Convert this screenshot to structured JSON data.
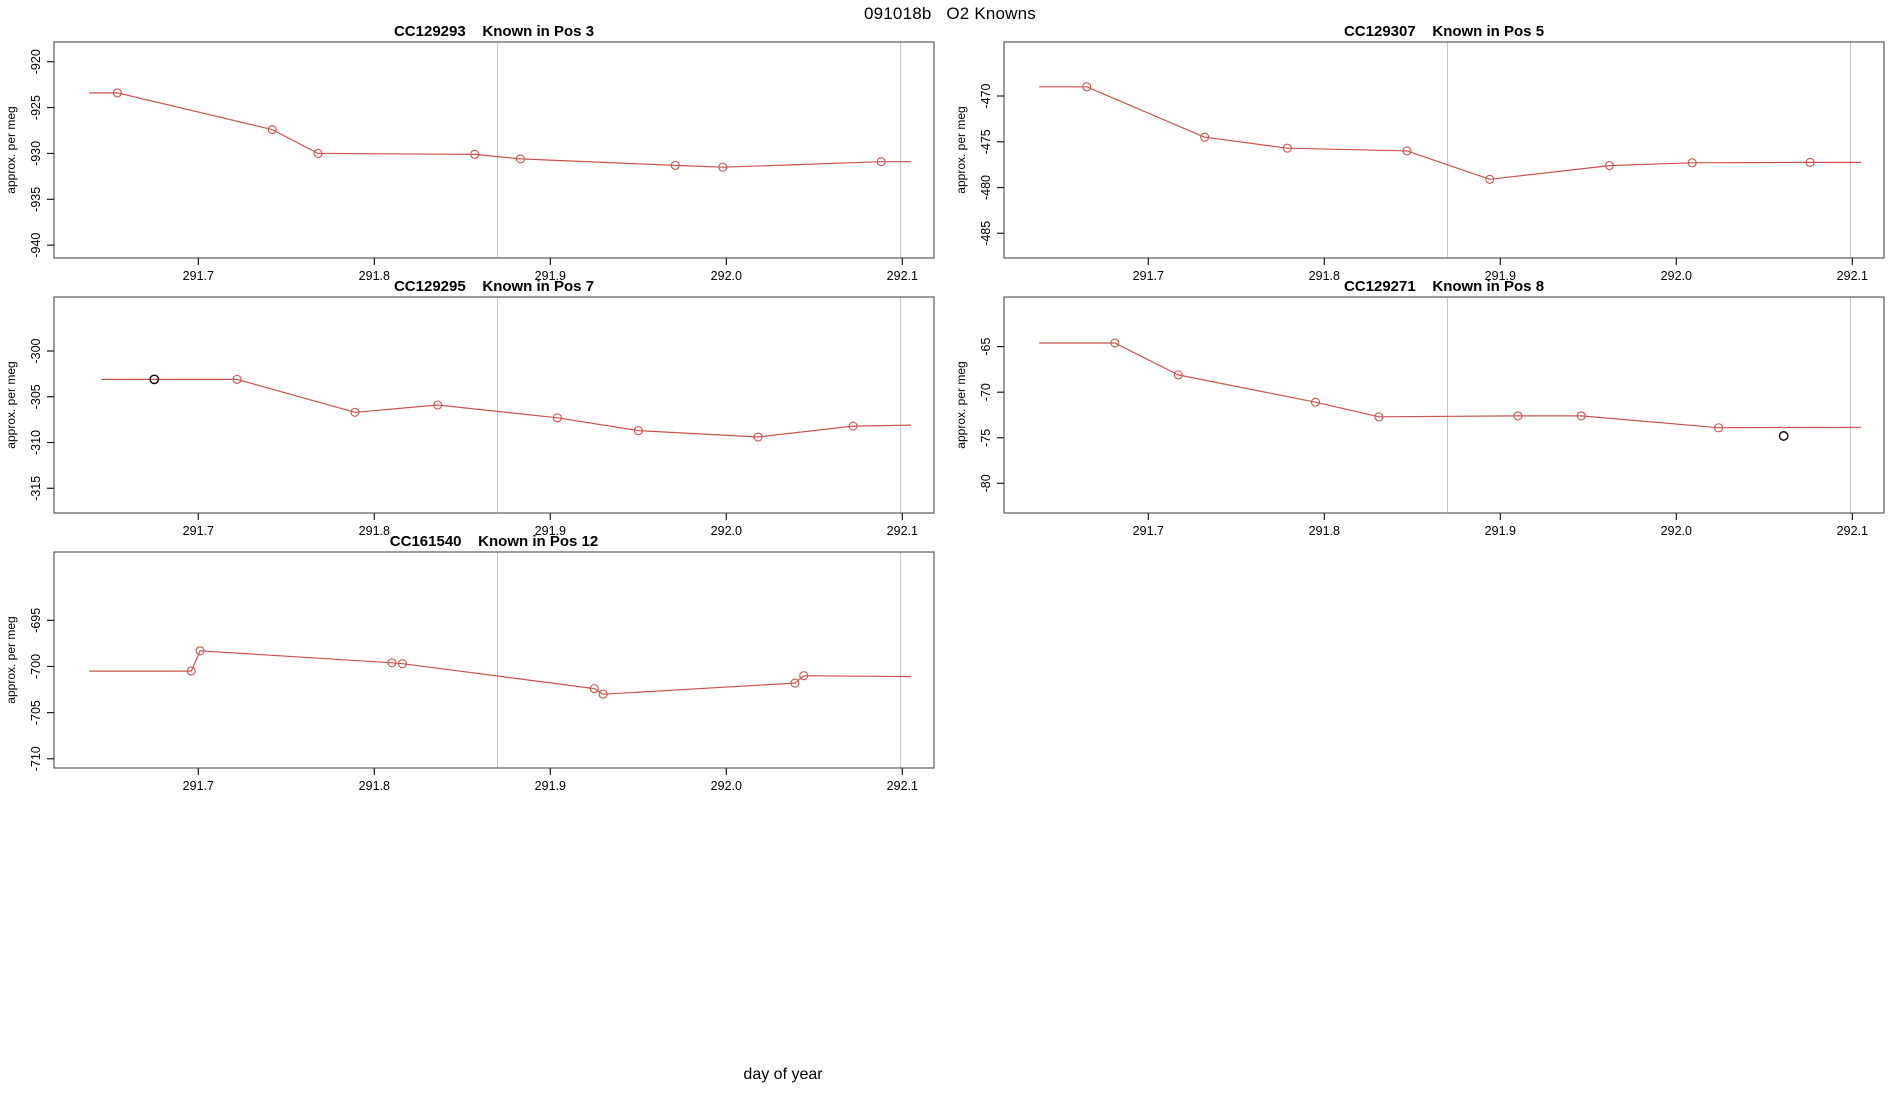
{
  "page": {
    "main_title": "091018b   O2 Knowns",
    "x_axis_label": "day of year"
  },
  "style": {
    "line_color": "#c9544f",
    "marker_color": "#c9544f",
    "outlier_color": "#140808",
    "vline_color": "#c6c6c6",
    "box_color": "#5a5a5a",
    "tick_color": "#1a1a1a",
    "text_color": "#000000"
  },
  "chart_data": [
    {
      "type": "line",
      "title": "CC129293    Known in Pos 3",
      "sample_id": "CC129293",
      "position_label": "Known in Pos 3",
      "ylabel": "approx. per meg",
      "col": 0,
      "row": 0,
      "xlim": [
        291.618,
        292.118
      ],
      "ylim": [
        -941.4,
        -917.85
      ],
      "xticks": [
        291.7,
        291.8,
        291.9,
        292.0,
        292.1
      ],
      "xtick_labels": [
        "291.7",
        "291.8",
        "291.9",
        "292.0",
        "292.1"
      ],
      "yticks": [
        -920,
        -925,
        -930,
        -935,
        -940
      ],
      "vlines": [
        291.87,
        292.099
      ],
      "x": [
        291.638,
        291.654,
        291.742,
        291.768,
        291.857,
        291.883,
        291.971,
        291.998,
        292.088,
        292.105
      ],
      "y": [
        -923.4,
        -923.4,
        -927.4,
        -930.0,
        -930.1,
        -930.6,
        -931.3,
        -931.5,
        -930.9,
        -930.9
      ],
      "m": [
        0,
        1,
        1,
        1,
        1,
        1,
        1,
        1,
        1,
        0
      ],
      "outliers": []
    },
    {
      "type": "line",
      "title": "CC129307    Known in Pos 5",
      "sample_id": "CC129307",
      "position_label": "Known in Pos 5",
      "ylabel": "approx. per meg",
      "col": 1,
      "row": 0,
      "xlim": [
        291.618,
        292.118
      ],
      "ylim": [
        -487.7,
        -464.1
      ],
      "xticks": [
        291.7,
        291.8,
        291.9,
        292.0,
        292.1
      ],
      "xtick_labels": [
        "291.7",
        "291.8",
        "291.9",
        "292.0",
        "292.1"
      ],
      "yticks": [
        -470,
        -475,
        -480,
        -485
      ],
      "vlines": [
        291.87,
        292.099
      ],
      "x": [
        291.638,
        291.665,
        291.732,
        291.779,
        291.847,
        291.894,
        291.962,
        292.009,
        292.076,
        292.105
      ],
      "y": [
        -469.0,
        -469.0,
        -474.5,
        -475.7,
        -476.0,
        -479.1,
        -477.6,
        -477.3,
        -477.25,
        -477.25
      ],
      "m": [
        0,
        1,
        1,
        1,
        1,
        1,
        1,
        1,
        1,
        0
      ],
      "outliers": []
    },
    {
      "type": "line",
      "title": "CC129295    Known in Pos 7",
      "sample_id": "CC129295",
      "position_label": "Known in Pos 7",
      "ylabel": "approx. per meg",
      "col": 0,
      "row": 1,
      "xlim": [
        291.618,
        292.118
      ],
      "ylim": [
        -317.7,
        -294.1
      ],
      "xticks": [
        291.7,
        291.8,
        291.9,
        292.0,
        292.1
      ],
      "xtick_labels": [
        "291.7",
        "291.8",
        "291.9",
        "292.0",
        "292.1"
      ],
      "yticks": [
        -300,
        -305,
        -310,
        -315
      ],
      "vlines": [
        291.87,
        292.099
      ],
      "x": [
        291.645,
        291.675,
        291.722,
        291.789,
        291.836,
        291.904,
        291.95,
        292.018,
        292.072,
        292.105
      ],
      "y": [
        -303.1,
        -303.1,
        -303.1,
        -306.7,
        -305.9,
        -307.3,
        -308.7,
        -309.4,
        -308.2,
        -308.1
      ],
      "m": [
        0,
        1,
        1,
        1,
        1,
        1,
        1,
        1,
        1,
        0
      ],
      "outliers": [
        {
          "x": 291.675,
          "y": -303.1
        }
      ]
    },
    {
      "type": "line",
      "title": "CC129271    Known in Pos 8",
      "sample_id": "CC129271",
      "position_label": "Known in Pos 8",
      "ylabel": "approx. per meg",
      "col": 1,
      "row": 1,
      "xlim": [
        291.618,
        292.118
      ],
      "ylim": [
        -83.25,
        -59.56
      ],
      "xticks": [
        291.7,
        291.8,
        291.9,
        292.0,
        292.1
      ],
      "xtick_labels": [
        "291.7",
        "291.8",
        "291.9",
        "292.0",
        "292.1"
      ],
      "yticks": [
        -65,
        -70,
        -75,
        -80
      ],
      "vlines": [
        291.87,
        292.099
      ],
      "x": [
        291.638,
        291.681,
        291.717,
        291.795,
        291.831,
        291.91,
        291.946,
        292.024,
        292.105
      ],
      "y": [
        -64.6,
        -64.6,
        -68.1,
        -71.1,
        -72.7,
        -72.6,
        -72.6,
        -73.9,
        -73.85
      ],
      "m": [
        0,
        1,
        1,
        1,
        1,
        1,
        1,
        1,
        0
      ],
      "outliers": [
        {
          "x": 292.061,
          "y": -74.8
        }
      ]
    },
    {
      "type": "line",
      "title": "CC161540    Known in Pos 12",
      "sample_id": "CC161540",
      "position_label": "Known in Pos 12",
      "ylabel": "approx. per meg",
      "col": 0,
      "row": 2,
      "xlim": [
        291.618,
        292.118
      ],
      "ylim": [
        -711.0,
        -687.6
      ],
      "xticks": [
        291.7,
        291.8,
        291.9,
        292.0,
        292.1
      ],
      "xtick_labels": [
        "291.7",
        "291.8",
        "291.9",
        "292.0",
        "292.1"
      ],
      "yticks": [
        -695,
        -700,
        -705,
        -710
      ],
      "vlines": [
        291.87,
        292.099
      ],
      "x": [
        291.638,
        291.696,
        291.701,
        291.81,
        291.816,
        291.925,
        291.93,
        292.039,
        292.044,
        292.105
      ],
      "y": [
        -700.5,
        -700.5,
        -698.3,
        -699.6,
        -699.7,
        -702.4,
        -703.0,
        -701.8,
        -701.0,
        -701.1
      ],
      "m": [
        0,
        1,
        1,
        1,
        1,
        1,
        1,
        1,
        1,
        0
      ],
      "outliers": []
    }
  ]
}
